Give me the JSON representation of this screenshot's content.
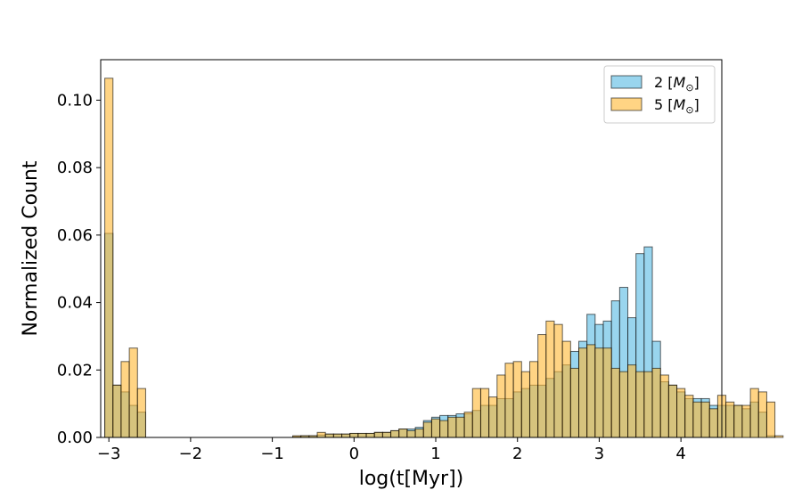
{
  "chart_data": {
    "type": "bar",
    "subtype": "overlapping-histogram",
    "xlabel": "log(t[Myr])",
    "ylabel": "Normalized Count",
    "xlim": [
      -3.1,
      4.5
    ],
    "ylim": [
      0,
      0.112
    ],
    "x_ticks": [
      -3,
      -2,
      -1,
      0,
      1,
      2,
      3,
      4
    ],
    "x_tick_labels": [
      "−3",
      "−2",
      "−1",
      "0",
      "1",
      "2",
      "3",
      "4"
    ],
    "y_ticks": [
      0.0,
      0.02,
      0.04,
      0.06,
      0.08,
      0.1
    ],
    "y_tick_labels": [
      "0.00",
      "0.02",
      "0.04",
      "0.06",
      "0.08",
      "0.10"
    ],
    "grid": false,
    "legend_position": "top-right",
    "bin_start": -3.05,
    "bin_width": 0.1,
    "series": [
      {
        "name": "2 [M☉]",
        "legend_base": "2 [",
        "legend_symbol": "M",
        "legend_sub": "⊙",
        "legend_end": "]",
        "color": "#87ceeb",
        "values": [
          0.0605,
          0.0155,
          0.0135,
          0.0095,
          0.0075,
          0,
          0,
          0,
          0,
          0,
          0,
          0,
          0,
          0,
          0,
          0,
          0,
          0,
          0,
          0,
          0,
          0,
          0,
          0.0003,
          0.0005,
          0.0005,
          0.0007,
          0.001,
          0.001,
          0.001,
          0.0012,
          0.0012,
          0.0012,
          0.0015,
          0.0015,
          0.002,
          0.0025,
          0.0025,
          0.003,
          0.005,
          0.006,
          0.0065,
          0.0065,
          0.007,
          0.007,
          0.008,
          0.0095,
          0.0095,
          0.0115,
          0.0115,
          0.0135,
          0.0145,
          0.0155,
          0.0155,
          0.0175,
          0.0195,
          0.0215,
          0.0255,
          0.0285,
          0.0365,
          0.0335,
          0.0345,
          0.0405,
          0.0445,
          0.0355,
          0.0545,
          0.0565,
          0.0285,
          0.0165,
          0.0155,
          0.0135,
          0.0115,
          0.0115,
          0.0115,
          0.0095,
          0.0095,
          0.0095,
          0.0095,
          0.0085,
          0.0105,
          0.0075,
          0.0005
        ]
      },
      {
        "name": "5 [M☉]",
        "legend_base": "5 [",
        "legend_symbol": "M",
        "legend_sub": "⊙",
        "legend_end": "]",
        "color": "#ffb732",
        "values": [
          0.1065,
          0.0155,
          0.0225,
          0.0265,
          0.0145,
          0,
          0,
          0,
          0,
          0,
          0,
          0,
          0,
          0,
          0,
          0,
          0,
          0,
          0,
          0,
          0,
          0,
          0,
          0.0005,
          0.0005,
          0.0005,
          0.0015,
          0.001,
          0.001,
          0.001,
          0.0012,
          0.0012,
          0.0012,
          0.0015,
          0.0015,
          0.002,
          0.0025,
          0.002,
          0.0025,
          0.0045,
          0.0055,
          0.005,
          0.006,
          0.006,
          0.0075,
          0.0145,
          0.0145,
          0.012,
          0.0185,
          0.022,
          0.0225,
          0.0195,
          0.0225,
          0.0305,
          0.0345,
          0.0335,
          0.0285,
          0.0205,
          0.0265,
          0.0275,
          0.0265,
          0.0265,
          0.0205,
          0.0195,
          0.0215,
          0.0195,
          0.0195,
          0.0205,
          0.0185,
          0.0155,
          0.0145,
          0.0125,
          0.0105,
          0.0105,
          0.0085,
          0.0125,
          0.0105,
          0.0095,
          0.0095,
          0.0145,
          0.0135,
          0.0105,
          0.0005
        ]
      }
    ]
  }
}
